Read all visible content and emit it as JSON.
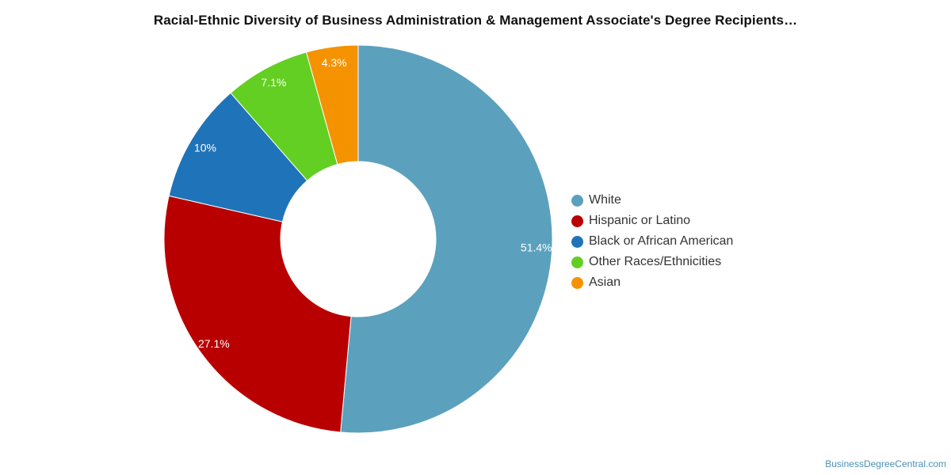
{
  "title": "Racial-Ethnic Diversity of Business Administration & Management Associate's Degree Recipients…",
  "source_credit": "BusinessDegreeCentral.com",
  "chart_data": {
    "type": "pie",
    "variant": "donut",
    "title": "Racial-Ethnic Diversity of Business Administration & Management Associate's Degree Recipients…",
    "legend_position": "right",
    "series": [
      {
        "name": "White",
        "value": 51.4,
        "label": "51.4%",
        "color": "#5ba1be"
      },
      {
        "name": "Hispanic or Latino",
        "value": 27.1,
        "label": "27.1%",
        "color": "#b90000"
      },
      {
        "name": "Black or African American",
        "value": 10.0,
        "label": "10%",
        "color": "#1f73b8"
      },
      {
        "name": "Other Races/Ethnicities",
        "value": 7.1,
        "label": "7.1%",
        "color": "#63cf22"
      },
      {
        "name": "Asian",
        "value": 4.3,
        "label": "4.3%",
        "color": "#f59200"
      }
    ]
  }
}
